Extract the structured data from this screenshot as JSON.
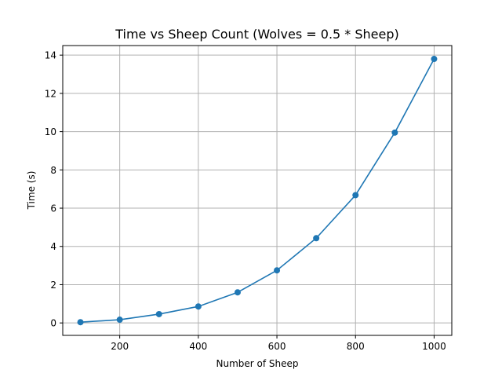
{
  "chart_data": {
    "type": "line",
    "title": "Time vs Sheep Count (Wolves = 0.5 * Sheep)",
    "xlabel": "Number of Sheep",
    "ylabel": "Time (s)",
    "x": [
      100,
      200,
      300,
      400,
      500,
      600,
      700,
      800,
      900,
      1000
    ],
    "series": [
      {
        "values": [
          0.04,
          0.17,
          0.46,
          0.86,
          1.6,
          2.75,
          4.43,
          6.68,
          9.95,
          13.8
        ]
      }
    ],
    "xlim": [
      55,
      1045
    ],
    "ylim": [
      -0.65,
      14.5
    ],
    "xticks": [
      200,
      400,
      600,
      800,
      1000
    ],
    "yticks": [
      0,
      2,
      4,
      6,
      8,
      10,
      12,
      14
    ],
    "grid": true,
    "marker": "circle",
    "line_color": "#1f77b4"
  }
}
